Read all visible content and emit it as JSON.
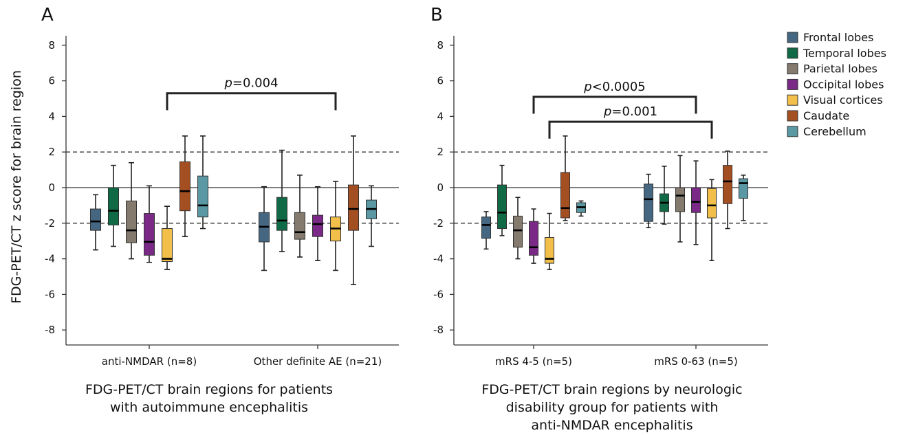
{
  "y_axis_label": "FDG-PET/CT z score for brain region",
  "legend": [
    {
      "label": "Frontal lobes",
      "color": "#466782"
    },
    {
      "label": "Temporal lobes",
      "color": "#0f6a45"
    },
    {
      "label": "Parietal lobes",
      "color": "#847a6e"
    },
    {
      "label": "Occipital lobes",
      "color": "#7a2a86"
    },
    {
      "label": "Visual cortices",
      "color": "#f2c04a"
    },
    {
      "label": "Caudate",
      "color": "#a44f22"
    },
    {
      "label": "Cerebellum",
      "color": "#5a98a3"
    }
  ],
  "chart_data": [
    {
      "type": "box",
      "panel": "A",
      "xlabel": "FDG-PET/CT brain regions for patients with autoimmune encephalitis",
      "xlabel_lines": [
        "FDG-PET/CT brain regions for patients",
        "with autoimmune encephalitis"
      ],
      "ylabel": "FDG-PET/CT z score for brain region",
      "ylim": [
        -9,
        9
      ],
      "yticks": [
        8,
        6,
        4,
        2,
        0,
        -2,
        -4,
        -6,
        -8
      ],
      "reference_lines": {
        "solid": [
          0
        ],
        "dashed": [
          2,
          -2
        ]
      },
      "groups": [
        {
          "label": "anti-NMDAR (n=8)",
          "boxes": [
            {
              "series": "Frontal lobes",
              "min": -3.5,
              "q1": -2.4,
              "median": -1.9,
              "q3": -1.2,
              "max": -0.4
            },
            {
              "series": "Temporal lobes",
              "min": -3.3,
              "q1": -2.1,
              "median": -1.3,
              "q3": 0.0,
              "max": 1.25
            },
            {
              "series": "Parietal lobes",
              "min": -4.0,
              "q1": -3.1,
              "median": -2.4,
              "q3": -0.75,
              "max": 1.4
            },
            {
              "series": "Occipital lobes",
              "min": -4.2,
              "q1": -3.8,
              "median": -3.05,
              "q3": -1.45,
              "max": 0.1
            },
            {
              "series": "Visual cortices",
              "min": -4.6,
              "q1": -4.15,
              "median": -4.0,
              "q3": -2.3,
              "max": -1.05
            },
            {
              "series": "Caudate",
              "min": -2.75,
              "q1": -1.3,
              "median": -0.2,
              "q3": 1.45,
              "max": 2.9
            },
            {
              "series": "Cerebellum",
              "min": -2.3,
              "q1": -1.65,
              "median": -1.0,
              "q3": 0.65,
              "max": 2.9
            }
          ]
        },
        {
          "label": "Other definite AE (n=21)",
          "boxes": [
            {
              "series": "Frontal lobes",
              "min": -4.65,
              "q1": -3.05,
              "median": -2.2,
              "q3": -1.4,
              "max": 0.05
            },
            {
              "series": "Temporal lobes",
              "min": -3.6,
              "q1": -2.4,
              "median": -1.85,
              "q3": -0.55,
              "max": 2.1
            },
            {
              "series": "Parietal lobes",
              "min": -3.9,
              "q1": -2.9,
              "median": -2.5,
              "q3": -1.4,
              "max": 0.7
            },
            {
              "series": "Occipital lobes",
              "min": -4.1,
              "q1": -2.75,
              "median": -2.05,
              "q3": -1.55,
              "max": 0.05
            },
            {
              "series": "Visual cortices",
              "min": -4.65,
              "q1": -3.0,
              "median": -2.3,
              "q3": -1.65,
              "max": 0.35
            },
            {
              "series": "Caudate",
              "min": -5.45,
              "q1": -2.4,
              "median": -1.2,
              "q3": 0.15,
              "max": 2.9
            },
            {
              "series": "Cerebellum",
              "min": -3.3,
              "q1": -1.75,
              "median": -1.2,
              "q3": -0.7,
              "max": 0.1
            }
          ]
        }
      ],
      "annotations": [
        {
          "label_italic": "p",
          "label_rest": "=0.004",
          "from_group": 0,
          "from_series": "Visual cortices",
          "to_group": 1,
          "to_series": "Visual cortices",
          "level": 5.3
        }
      ]
    },
    {
      "type": "box",
      "panel": "B",
      "xlabel": "FDG-PET/CT brain regions by neurologic disability group for patients with anti-NMDAR encephalitis",
      "xlabel_lines": [
        "FDG-PET/CT brain regions by neurologic",
        "disability group for patients with",
        "anti-NMDAR encephalitis"
      ],
      "ylim": [
        -9,
        9
      ],
      "yticks": [
        8,
        6,
        4,
        2,
        0,
        -2,
        -4,
        -6,
        -8
      ],
      "reference_lines": {
        "solid": [
          0
        ],
        "dashed": [
          2,
          -2
        ]
      },
      "groups": [
        {
          "label": "mRS 4-5 (n=5)",
          "boxes": [
            {
              "series": "Frontal lobes",
              "min": -3.45,
              "q1": -2.85,
              "median": -2.1,
              "q3": -1.65,
              "max": -1.35
            },
            {
              "series": "Temporal lobes",
              "min": -2.7,
              "q1": -2.3,
              "median": -1.4,
              "q3": 0.15,
              "max": 1.25
            },
            {
              "series": "Parietal lobes",
              "min": -4.0,
              "q1": -3.35,
              "median": -2.4,
              "q3": -1.6,
              "max": -0.55
            },
            {
              "series": "Occipital lobes",
              "min": -4.25,
              "q1": -3.8,
              "median": -3.35,
              "q3": -1.9,
              "max": -1.2
            },
            {
              "series": "Visual cortices",
              "min": -4.6,
              "q1": -4.25,
              "median": -4.0,
              "q3": -2.8,
              "max": -1.45
            },
            {
              "series": "Caudate",
              "min": -1.85,
              "q1": -1.7,
              "median": -1.15,
              "q3": 0.85,
              "max": 2.9
            },
            {
              "series": "Cerebellum",
              "min": -1.6,
              "q1": -1.4,
              "median": -1.1,
              "q3": -0.85,
              "max": -0.75
            }
          ]
        },
        {
          "label": "mRS 0-63 (n=5)",
          "boxes": [
            {
              "series": "Frontal lobes",
              "min": -2.25,
              "q1": -1.9,
              "median": -0.65,
              "q3": 0.2,
              "max": 0.75
            },
            {
              "series": "Temporal lobes",
              "min": -2.05,
              "q1": -1.35,
              "median": -0.85,
              "q3": -0.35,
              "max": 1.2
            },
            {
              "series": "Parietal lobes",
              "min": -3.05,
              "q1": -1.35,
              "median": -0.45,
              "q3": 0.0,
              "max": 1.8
            },
            {
              "series": "Occipital lobes",
              "min": -3.2,
              "q1": -1.4,
              "median": -0.8,
              "q3": 0.0,
              "max": 1.5
            },
            {
              "series": "Visual cortices",
              "min": -4.1,
              "q1": -1.7,
              "median": -1.0,
              "q3": -0.05,
              "max": 0.45
            },
            {
              "series": "Caudate",
              "min": -2.3,
              "q1": -0.9,
              "median": 0.35,
              "q3": 1.25,
              "max": 2.05
            },
            {
              "series": "Cerebellum",
              "min": -1.85,
              "q1": -0.6,
              "median": 0.25,
              "q3": 0.5,
              "max": 0.7
            }
          ]
        }
      ],
      "annotations": [
        {
          "label_italic": "p",
          "label_rest": "<0.0005",
          "from_group": 0,
          "from_series": "Occipital lobes",
          "to_group": 1,
          "to_series": "Occipital lobes",
          "level": 5.1
        },
        {
          "label_italic": "p",
          "label_rest": "=0.001",
          "from_group": 0,
          "from_series": "Visual cortices",
          "to_group": 1,
          "to_series": "Visual cortices",
          "level": 3.7
        }
      ]
    }
  ]
}
